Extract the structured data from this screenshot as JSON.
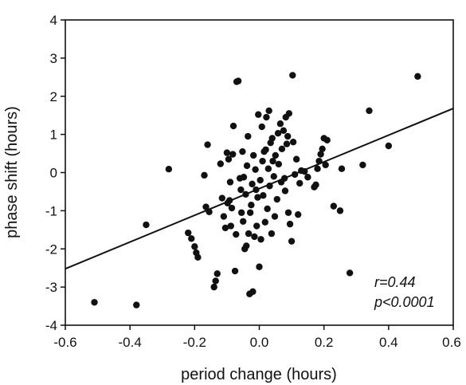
{
  "chart_data": {
    "type": "scatter",
    "xlabel": "period change (hours)",
    "ylabel": "phase shift (hours)",
    "xlim": [
      -0.6,
      0.6
    ],
    "ylim": [
      -4,
      4
    ],
    "xticks": [
      -0.6,
      -0.4,
      -0.2,
      0.0,
      0.2,
      0.4,
      0.6
    ],
    "yticks": [
      -4,
      -3,
      -2,
      -1,
      0,
      1,
      2,
      3,
      4
    ],
    "xtick_labels": [
      "-0.6",
      "-0.4",
      "-0.2",
      "0.0",
      "0.2",
      "0.4",
      "0.6"
    ],
    "ytick_labels": [
      "-4",
      "-3",
      "-2",
      "-1",
      "0",
      "1",
      "2",
      "3",
      "4"
    ],
    "grid": false,
    "annotations": [
      "r=0.44",
      "p<0.0001"
    ],
    "regression_line": {
      "x": [
        -0.6,
        0.6
      ],
      "y": [
        -2.52,
        1.68
      ]
    },
    "points": [
      [
        -0.51,
        -3.4
      ],
      [
        -0.38,
        -3.47
      ],
      [
        -0.35,
        -1.37
      ],
      [
        -0.28,
        0.09
      ],
      [
        -0.22,
        -1.58
      ],
      [
        -0.21,
        -1.73
      ],
      [
        -0.2,
        -1.94
      ],
      [
        -0.195,
        -2.1
      ],
      [
        -0.19,
        -2.22
      ],
      [
        -0.17,
        -0.07
      ],
      [
        -0.165,
        -0.9
      ],
      [
        -0.16,
        0.73
      ],
      [
        -0.155,
        -1.03
      ],
      [
        -0.14,
        -3.0
      ],
      [
        -0.135,
        -2.84
      ],
      [
        -0.13,
        -2.65
      ],
      [
        -0.12,
        0.23
      ],
      [
        -0.115,
        -0.67
      ],
      [
        -0.11,
        -1.15
      ],
      [
        -0.105,
        -1.45
      ],
      [
        -0.1,
        0.52
      ],
      [
        -0.098,
        -0.8
      ],
      [
        -0.095,
        0.35
      ],
      [
        -0.092,
        -0.73
      ],
      [
        -0.09,
        -0.25
      ],
      [
        -0.088,
        -1.4
      ],
      [
        -0.085,
        -0.93
      ],
      [
        -0.082,
        0.48
      ],
      [
        -0.08,
        1.22
      ],
      [
        -0.075,
        -2.58
      ],
      [
        -0.072,
        -1.62
      ],
      [
        -0.07,
        2.38
      ],
      [
        -0.065,
        2.4
      ],
      [
        -0.06,
        -0.15
      ],
      [
        -0.057,
        -0.45
      ],
      [
        -0.055,
        -1.05
      ],
      [
        -0.052,
        0.55
      ],
      [
        -0.05,
        -1.28
      ],
      [
        -0.048,
        -0.12
      ],
      [
        -0.045,
        -2.0
      ],
      [
        -0.042,
        -0.57
      ],
      [
        -0.04,
        -1.92
      ],
      [
        -0.038,
        0.18
      ],
      [
        -0.035,
        0.95
      ],
      [
        -0.033,
        -1.6
      ],
      [
        -0.03,
        -3.18
      ],
      [
        -0.028,
        -1.05
      ],
      [
        -0.025,
        -0.85
      ],
      [
        -0.022,
        -0.3
      ],
      [
        -0.02,
        -3.12
      ],
      [
        -0.018,
        0.45
      ],
      [
        -0.015,
        -1.68
      ],
      [
        -0.012,
        0.08
      ],
      [
        -0.01,
        -0.45
      ],
      [
        -0.008,
        -1.4
      ],
      [
        -0.005,
        -0.65
      ],
      [
        -0.003,
        1.52
      ],
      [
        0.0,
        -2.47
      ],
      [
        0.003,
        -0.2
      ],
      [
        0.005,
        -1.75
      ],
      [
        0.008,
        1.2
      ],
      [
        0.01,
        0.3
      ],
      [
        0.012,
        -0.6
      ],
      [
        0.015,
        0.55
      ],
      [
        0.018,
        -1.3
      ],
      [
        0.02,
        0.6
      ],
      [
        0.022,
        1.45
      ],
      [
        0.025,
        -0.95
      ],
      [
        0.028,
        0.1
      ],
      [
        0.03,
        1.62
      ],
      [
        0.032,
        -0.35
      ],
      [
        0.035,
        0.78
      ],
      [
        0.038,
        -1.6
      ],
      [
        0.04,
        0.9
      ],
      [
        0.042,
        0.3
      ],
      [
        0.045,
        -0.1
      ],
      [
        0.048,
        -1.15
      ],
      [
        0.05,
        0.45
      ],
      [
        0.055,
        -0.7
      ],
      [
        0.058,
        1.03
      ],
      [
        0.06,
        0.22
      ],
      [
        0.065,
        1.28
      ],
      [
        0.068,
        -0.25
      ],
      [
        0.07,
        0.62
      ],
      [
        0.075,
        1.1
      ],
      [
        0.078,
        -0.15
      ],
      [
        0.08,
        -0.48
      ],
      [
        0.082,
        1.45
      ],
      [
        0.085,
        0.75
      ],
      [
        0.088,
        0.95
      ],
      [
        0.09,
        -1.05
      ],
      [
        0.092,
        1.55
      ],
      [
        0.095,
        -1.35
      ],
      [
        0.1,
        -1.8
      ],
      [
        0.103,
        2.55
      ],
      [
        0.105,
        0.8
      ],
      [
        0.11,
        -0.05
      ],
      [
        0.115,
        0.35
      ],
      [
        0.12,
        -1.1
      ],
      [
        0.125,
        -0.28
      ],
      [
        0.13,
        0.05
      ],
      [
        0.14,
        0.03
      ],
      [
        0.15,
        -0.12
      ],
      [
        0.17,
        -0.38
      ],
      [
        0.175,
        -0.32
      ],
      [
        0.18,
        0.1
      ],
      [
        0.185,
        0.3
      ],
      [
        0.19,
        0.48
      ],
      [
        0.195,
        0.62
      ],
      [
        0.2,
        0.9
      ],
      [
        0.205,
        0.2
      ],
      [
        0.21,
        0.85
      ],
      [
        0.23,
        -0.88
      ],
      [
        0.25,
        -1.0
      ],
      [
        0.255,
        0.1
      ],
      [
        0.28,
        -2.63
      ],
      [
        0.32,
        0.2
      ],
      [
        0.34,
        1.62
      ],
      [
        0.4,
        0.7
      ],
      [
        0.49,
        2.52
      ]
    ]
  }
}
